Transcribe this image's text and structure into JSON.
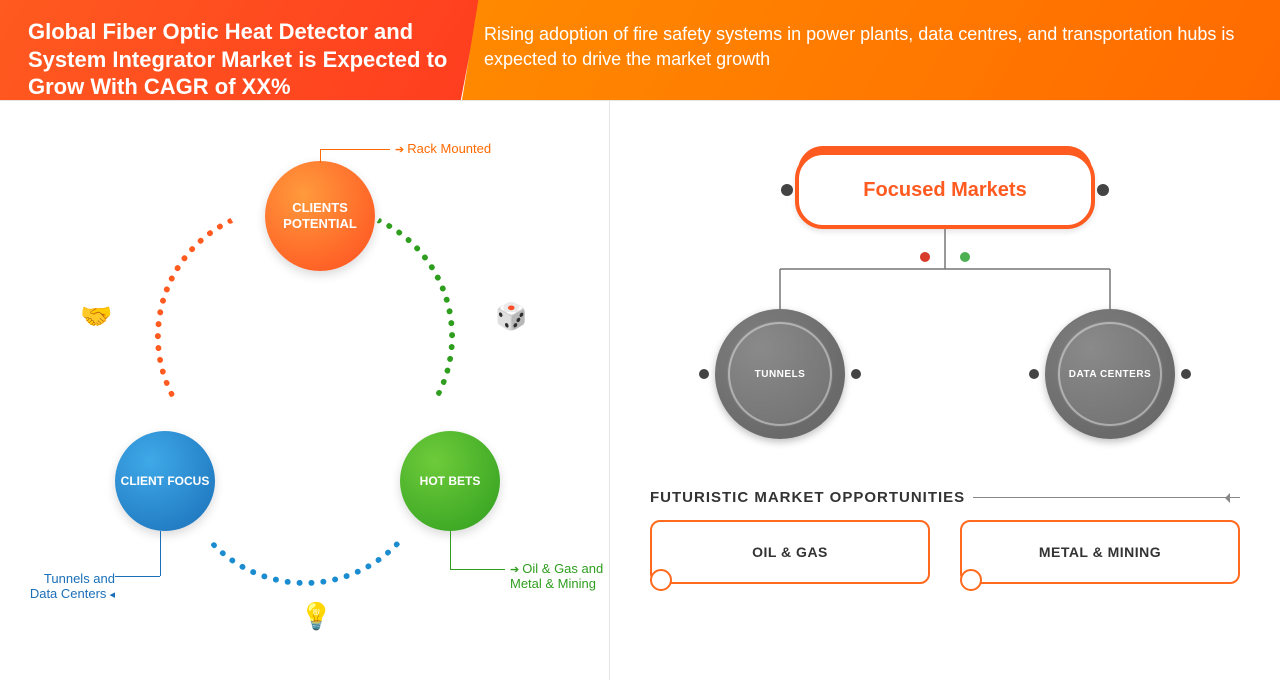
{
  "header": {
    "title": "Global Fiber Optic Heat Detector and System Integrator Market is Expected to Grow With CAGR of XX%",
    "subtitle": "Rising adoption of fire safety systems in power plants, data centres, and transportation hubs is expected to drive the market growth",
    "left_bg": "linear-gradient(120deg,#ff5a1f 0%,#ff3d1f 100%)",
    "right_bg": "linear-gradient(120deg,#ff8a00 0%,#ff6a00 100%)"
  },
  "cycle": {
    "nodes": {
      "top": {
        "label": "CLIENTS POTENTIAL",
        "gradient": "radial-gradient(circle at 35% 30%, #ff9a3c, #ff4e1f)"
      },
      "bl": {
        "label": "CLIENT FOCUS",
        "gradient": "radial-gradient(circle at 35% 30%, #3fa9e8, #1a6fb8)"
      },
      "br": {
        "label": "HOT BETS",
        "gradient": "radial-gradient(circle at 35% 30%, #6ecb3a, #2f9e1f)"
      }
    },
    "callouts": {
      "top": {
        "text": "Rack Mounted",
        "color": "#ff6a00"
      },
      "bl": {
        "text": "Tunnels and Data Centers",
        "color": "#1a6fb8"
      },
      "br": {
        "text": "Oil & Gas and Metal & Mining",
        "color": "#2f9e1f"
      }
    },
    "arcs": {
      "tr": "#2f9e1f",
      "tl": "#ff5a1f",
      "b": "#1a8ccf"
    },
    "icons": {
      "handshake": "🤝",
      "dice": "🎲",
      "bulb": "💡"
    }
  },
  "focused": {
    "title": "Focused Markets",
    "pill_color": "#ff5a1f",
    "node_color": "#6b6b6b",
    "nodes": [
      {
        "label": "TUNNELS"
      },
      {
        "label": "DATA CENTERS"
      }
    ],
    "dot_colors": {
      "left": "#d83a2b",
      "right": "#4caf50"
    },
    "tree_line_color": "#777"
  },
  "future": {
    "heading": "FUTURISTIC MARKET OPPORTUNITIES",
    "items": [
      "OIL & GAS",
      "METAL & MINING"
    ],
    "box_border": "#ff6a1f"
  }
}
